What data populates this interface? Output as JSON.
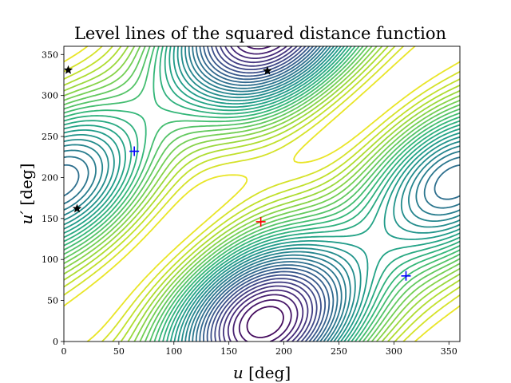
{
  "chart_data": {
    "type": "contour",
    "title": "Level lines of the squared distance function",
    "xlabel": {
      "var": "u",
      "unit": "[deg]"
    },
    "ylabel": {
      "var": "u′",
      "unit": "[deg]"
    },
    "xlim": [
      0,
      360
    ],
    "ylim": [
      0,
      360
    ],
    "xticks": [
      0,
      50,
      100,
      150,
      200,
      250,
      300,
      350
    ],
    "yticks": [
      0,
      50,
      100,
      150,
      200,
      250,
      300,
      350
    ],
    "colormap": "viridis",
    "contour_levels": 32,
    "grid": false,
    "legend": "none",
    "markers": [
      {
        "type": "plus",
        "color": "#ff0000",
        "x": 179,
        "y": 146
      },
      {
        "type": "plus",
        "color": "#0000ff",
        "x": 64,
        "y": 232
      },
      {
        "type": "plus",
        "color": "#0000ff",
        "x": 311,
        "y": 80
      },
      {
        "type": "star",
        "color": "#000000",
        "x": 4,
        "y": 331
      },
      {
        "type": "star",
        "color": "#000000",
        "x": 185,
        "y": 330
      },
      {
        "type": "star",
        "color": "#000000",
        "x": 12,
        "y": 162
      }
    ]
  }
}
